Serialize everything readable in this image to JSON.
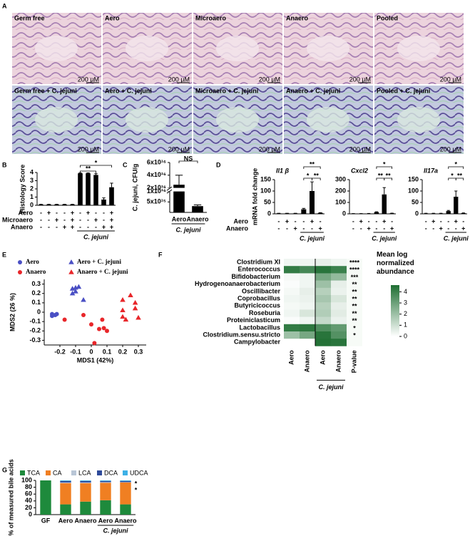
{
  "histology": {
    "panel": "A",
    "scale_label": "200 µM",
    "rows": [
      [
        "Germ free",
        "Aero",
        "Microaero",
        "Anaero",
        "Pooled"
      ],
      [
        "Germ free + C. jejuni",
        "Aero + C. jejuni",
        "Microaero + C. jejuni",
        "Anaero + C. jejuni",
        "Pooled + C. jejuni"
      ]
    ]
  },
  "chart_data": [
    {
      "type": "bar",
      "panel": "B",
      "ylabel": "Histology Score",
      "ylim": [
        0,
        4
      ],
      "yticks": [
        0,
        1,
        2,
        3,
        4
      ],
      "values": [
        0.1,
        0.1,
        0.1,
        0.1,
        0.1,
        3.9,
        3.9,
        3.7,
        0.7,
        2.2
      ],
      "errors": [
        0.02,
        0.02,
        0.02,
        0.02,
        0.02,
        0.05,
        0.05,
        0.15,
        0.2,
        0.5
      ],
      "conditions": [
        {
          "name": "Aero",
          "signs": [
            "-",
            "+",
            "-",
            "-",
            "+",
            "-",
            "+",
            "-",
            "-",
            "+"
          ]
        },
        {
          "name": "Microaero",
          "signs": [
            "-",
            "-",
            "+",
            "-",
            "+",
            "-",
            "-",
            "+",
            "-",
            "+"
          ]
        },
        {
          "name": "Anaero",
          "signs": [
            "-",
            "-",
            "-",
            "+",
            "+",
            "-",
            "-",
            "-",
            "+",
            "+"
          ]
        }
      ],
      "group": {
        "label": "C. jejuni",
        "start": 5,
        "end": 9
      },
      "significance": [
        {
          "from": 5,
          "to": 7,
          "label": "**"
        },
        {
          "from": 5,
          "to": 9,
          "label": "*"
        }
      ]
    },
    {
      "type": "bar",
      "panel": "C",
      "ylabel": "C. jejuni, CFU/g",
      "ylim": [
        0,
        6e+16
      ],
      "axis_break": [
        1e+16,
        2e+16
      ],
      "yticks": [
        {
          "value": 5000000000000000.0,
          "label": "5x10¹⁵"
        },
        {
          "value": 1e+16,
          "label": "1x10¹⁶"
        },
        {
          "value": 2e+16,
          "label": "2x10¹⁶"
        },
        {
          "value": 4e+16,
          "label": "4x10¹⁶"
        },
        {
          "value": 6e+16,
          "label": "6x10¹⁶"
        }
      ],
      "categories": [
        "Aero",
        "Anaero"
      ],
      "values": [
        2.5e+16,
        3000000000000000.0
      ],
      "errors": [
        1.5e+16,
        600000000000000.0
      ],
      "group": {
        "label": "C. jejuni",
        "start": 0,
        "end": 1
      },
      "significance": [
        {
          "from": 0,
          "to": 1,
          "label": "NS"
        }
      ]
    },
    {
      "type": "bar",
      "panel": "D",
      "title": "Il1 β",
      "ylabel": "mRNA fold change",
      "ylim": [
        0,
        150
      ],
      "yticks": [
        0,
        50,
        100,
        150
      ],
      "values": [
        2,
        2,
        2,
        20,
        100,
        4
      ],
      "errors": [
        0.5,
        0.5,
        0.5,
        4,
        40,
        1
      ],
      "conditions": [
        {
          "name": "Aero",
          "signs": [
            "-",
            "+",
            "-",
            "-",
            "+",
            "-"
          ]
        },
        {
          "name": "Anaero",
          "signs": [
            "-",
            "-",
            "+",
            "-",
            "-",
            "+"
          ]
        }
      ],
      "group": {
        "label": "C. jejuni",
        "start": 3,
        "end": 5
      },
      "significance": [
        {
          "from": 3,
          "to": 4,
          "label": "*"
        },
        {
          "from": 4,
          "to": 5,
          "label": "**"
        },
        {
          "from": 3,
          "to": 5,
          "label": "**"
        }
      ]
    },
    {
      "type": "bar",
      "title": "Cxcl2",
      "ylim": [
        0,
        300
      ],
      "yticks": [
        0,
        100,
        200,
        300
      ],
      "values": [
        2,
        2,
        3,
        15,
        170,
        5
      ],
      "errors": [
        0.5,
        0.5,
        0.5,
        3,
        60,
        1
      ],
      "conditions": [
        {
          "signs": [
            "-",
            "+",
            "-",
            "-",
            "+",
            "-"
          ]
        },
        {
          "signs": [
            "-",
            "-",
            "+",
            "-",
            "-",
            "+"
          ]
        }
      ],
      "group": {
        "label": "C. jejuni",
        "start": 3,
        "end": 5
      },
      "significance": [
        {
          "from": 3,
          "to": 4,
          "label": "**"
        },
        {
          "from": 4,
          "to": 5,
          "label": "**"
        },
        {
          "from": 3,
          "to": 5,
          "label": "*"
        }
      ]
    },
    {
      "type": "bar",
      "title": "Il17a",
      "ylim": [
        0,
        150
      ],
      "yticks": [
        0,
        50,
        100,
        150
      ],
      "values": [
        2,
        2,
        2,
        12,
        75,
        3
      ],
      "errors": [
        0.5,
        0.5,
        0.5,
        3,
        25,
        1
      ],
      "conditions": [
        {
          "signs": [
            "-",
            "+",
            "-",
            "-",
            "+",
            "-"
          ]
        },
        {
          "signs": [
            "-",
            "-",
            "+",
            "-",
            "-",
            "+"
          ]
        }
      ],
      "group": {
        "label": "C. jejuni",
        "start": 3,
        "end": 5
      },
      "significance": [
        {
          "from": 3,
          "to": 4,
          "label": "*"
        },
        {
          "from": 4,
          "to": 5,
          "label": "**"
        },
        {
          "from": 3,
          "to": 5,
          "label": "*"
        }
      ]
    },
    {
      "type": "scatter",
      "panel": "E",
      "xlabel": "MDS1 (42%)",
      "ylabel": "MDS2 (26 %)",
      "xlim": [
        -0.3,
        0.35
      ],
      "ylim": [
        -0.35,
        0.35
      ],
      "xticks": [
        -0.2,
        -0.1,
        0,
        0.1,
        0.2,
        0.3
      ],
      "yticks": [
        -0.3,
        -0.2,
        -0.1,
        0,
        0.1,
        0.2,
        0.3
      ],
      "series": [
        {
          "name": "Aero",
          "color": "#4a4fc4",
          "marker": "circle",
          "x": [
            -0.25,
            -0.23,
            -0.25,
            -0.22
          ],
          "y": [
            -0.02,
            -0.03,
            -0.04,
            -0.02
          ]
        },
        {
          "name": "Aero + C. jejuni",
          "color": "#4a4fc4",
          "marker": "triangle",
          "x": [
            -0.12,
            -0.1,
            -0.1,
            -0.08,
            -0.12,
            -0.05
          ],
          "y": [
            0.25,
            0.26,
            0.22,
            0.27,
            0.2,
            0.13
          ]
        },
        {
          "name": "Anaero",
          "color": "#e8262a",
          "marker": "circle",
          "x": [
            -0.17,
            -0.05,
            0.0,
            0.05,
            0.08,
            0.07,
            0.1,
            0.02
          ],
          "y": [
            -0.08,
            -0.03,
            -0.13,
            -0.18,
            -0.17,
            -0.08,
            -0.2,
            -0.33
          ]
        },
        {
          "name": "Anaero + C. jejuni",
          "color": "#e8262a",
          "marker": "triangle",
          "x": [
            0.2,
            0.25,
            0.2,
            0.28,
            0.2,
            0.22,
            0.3,
            0.28
          ],
          "y": [
            0.13,
            0.18,
            0.02,
            0.04,
            -0.05,
            -0.08,
            -0.06,
            0.1
          ]
        }
      ]
    },
    {
      "type": "heatmap",
      "panel": "F",
      "rows": [
        "Clostridium XI",
        "Enterococcus",
        "Bifidobacterium",
        "Hydrogenoanaerobacterium",
        "Oscillibacter",
        "Coprobacillus",
        "Butyricicoccus",
        "Roseburia",
        "Proteiniclasticum",
        "Lactobacillus",
        "Clostridium.sensu.stricto",
        "Campylobacter"
      ],
      "row_colors": [
        "#3aa935",
        "#000000",
        "#3aa935",
        "#000000",
        "#000000",
        "#000000",
        "#3aa935",
        "#3aa935",
        "#000000",
        "#3aa935",
        "#000000",
        "#e8262a"
      ],
      "columns": [
        "Aero",
        "Anaero",
        "Aero",
        "Anaero"
      ],
      "pvalue_label": "P-value",
      "pvalues": [
        "****",
        "****",
        "***",
        "**",
        "**",
        "**",
        "**",
        "**",
        "**",
        "*",
        "*",
        null
      ],
      "values": [
        [
          0.3,
          0.3,
          0.5,
          0.3
        ],
        [
          4.2,
          3.8,
          4.4,
          4.0
        ],
        [
          0.2,
          0.3,
          2.8,
          2.2
        ],
        [
          0.1,
          0.3,
          2.0,
          0.5
        ],
        [
          0.2,
          0.5,
          1.5,
          0.4
        ],
        [
          0.3,
          0.4,
          1.8,
          0.8
        ],
        [
          0.2,
          0.3,
          1.5,
          0.5
        ],
        [
          0.3,
          0.8,
          1.6,
          0.6
        ],
        [
          0.1,
          0.3,
          1.2,
          0.4
        ],
        [
          4.2,
          4.3,
          3.6,
          3.2
        ],
        [
          2.0,
          2.8,
          4.4,
          3.5
        ],
        [
          0,
          0,
          4.5,
          4.4
        ]
      ],
      "colorbar_title": "Mean log normalized abundance",
      "clim": [
        0,
        4.6
      ],
      "cticks": [
        0,
        1,
        2,
        3,
        4
      ],
      "color": "#1e6e32",
      "group": {
        "label": "C. jejuni",
        "start": 2,
        "end": 3
      }
    },
    {
      "type": "stacked_bar",
      "panel": "G",
      "ylabel": "% of measured bile acids",
      "ylim": [
        0,
        100
      ],
      "yticks": [
        0,
        20,
        40,
        60,
        80,
        100
      ],
      "categories": [
        "GF",
        "Aero",
        "Anaero",
        "Aero",
        "Anaero"
      ],
      "series": [
        {
          "name": "TCA",
          "color": "#1e8a3c",
          "values": [
            100,
            30,
            38,
            42,
            30
          ]
        },
        {
          "name": "CA",
          "color": "#f07f22",
          "values": [
            0,
            62,
            54,
            51,
            64
          ]
        },
        {
          "name": "LCA",
          "color": "#b9c6d6",
          "values": [
            0,
            2,
            2,
            2,
            1
          ]
        },
        {
          "name": "DCA",
          "color": "#2e4a9a",
          "values": [
            0,
            4,
            4,
            3,
            3
          ]
        },
        {
          "name": "UDCA",
          "color": "#3db0e6",
          "values": [
            0,
            2,
            2,
            2,
            2
          ]
        }
      ],
      "annotations": [
        {
          "text": "*",
          "color": "#2e4a9a"
        },
        {
          "text": "*",
          "color": "#3db0e6"
        }
      ],
      "group": {
        "label": "C. jejuni",
        "start": 3,
        "end": 4
      }
    }
  ]
}
